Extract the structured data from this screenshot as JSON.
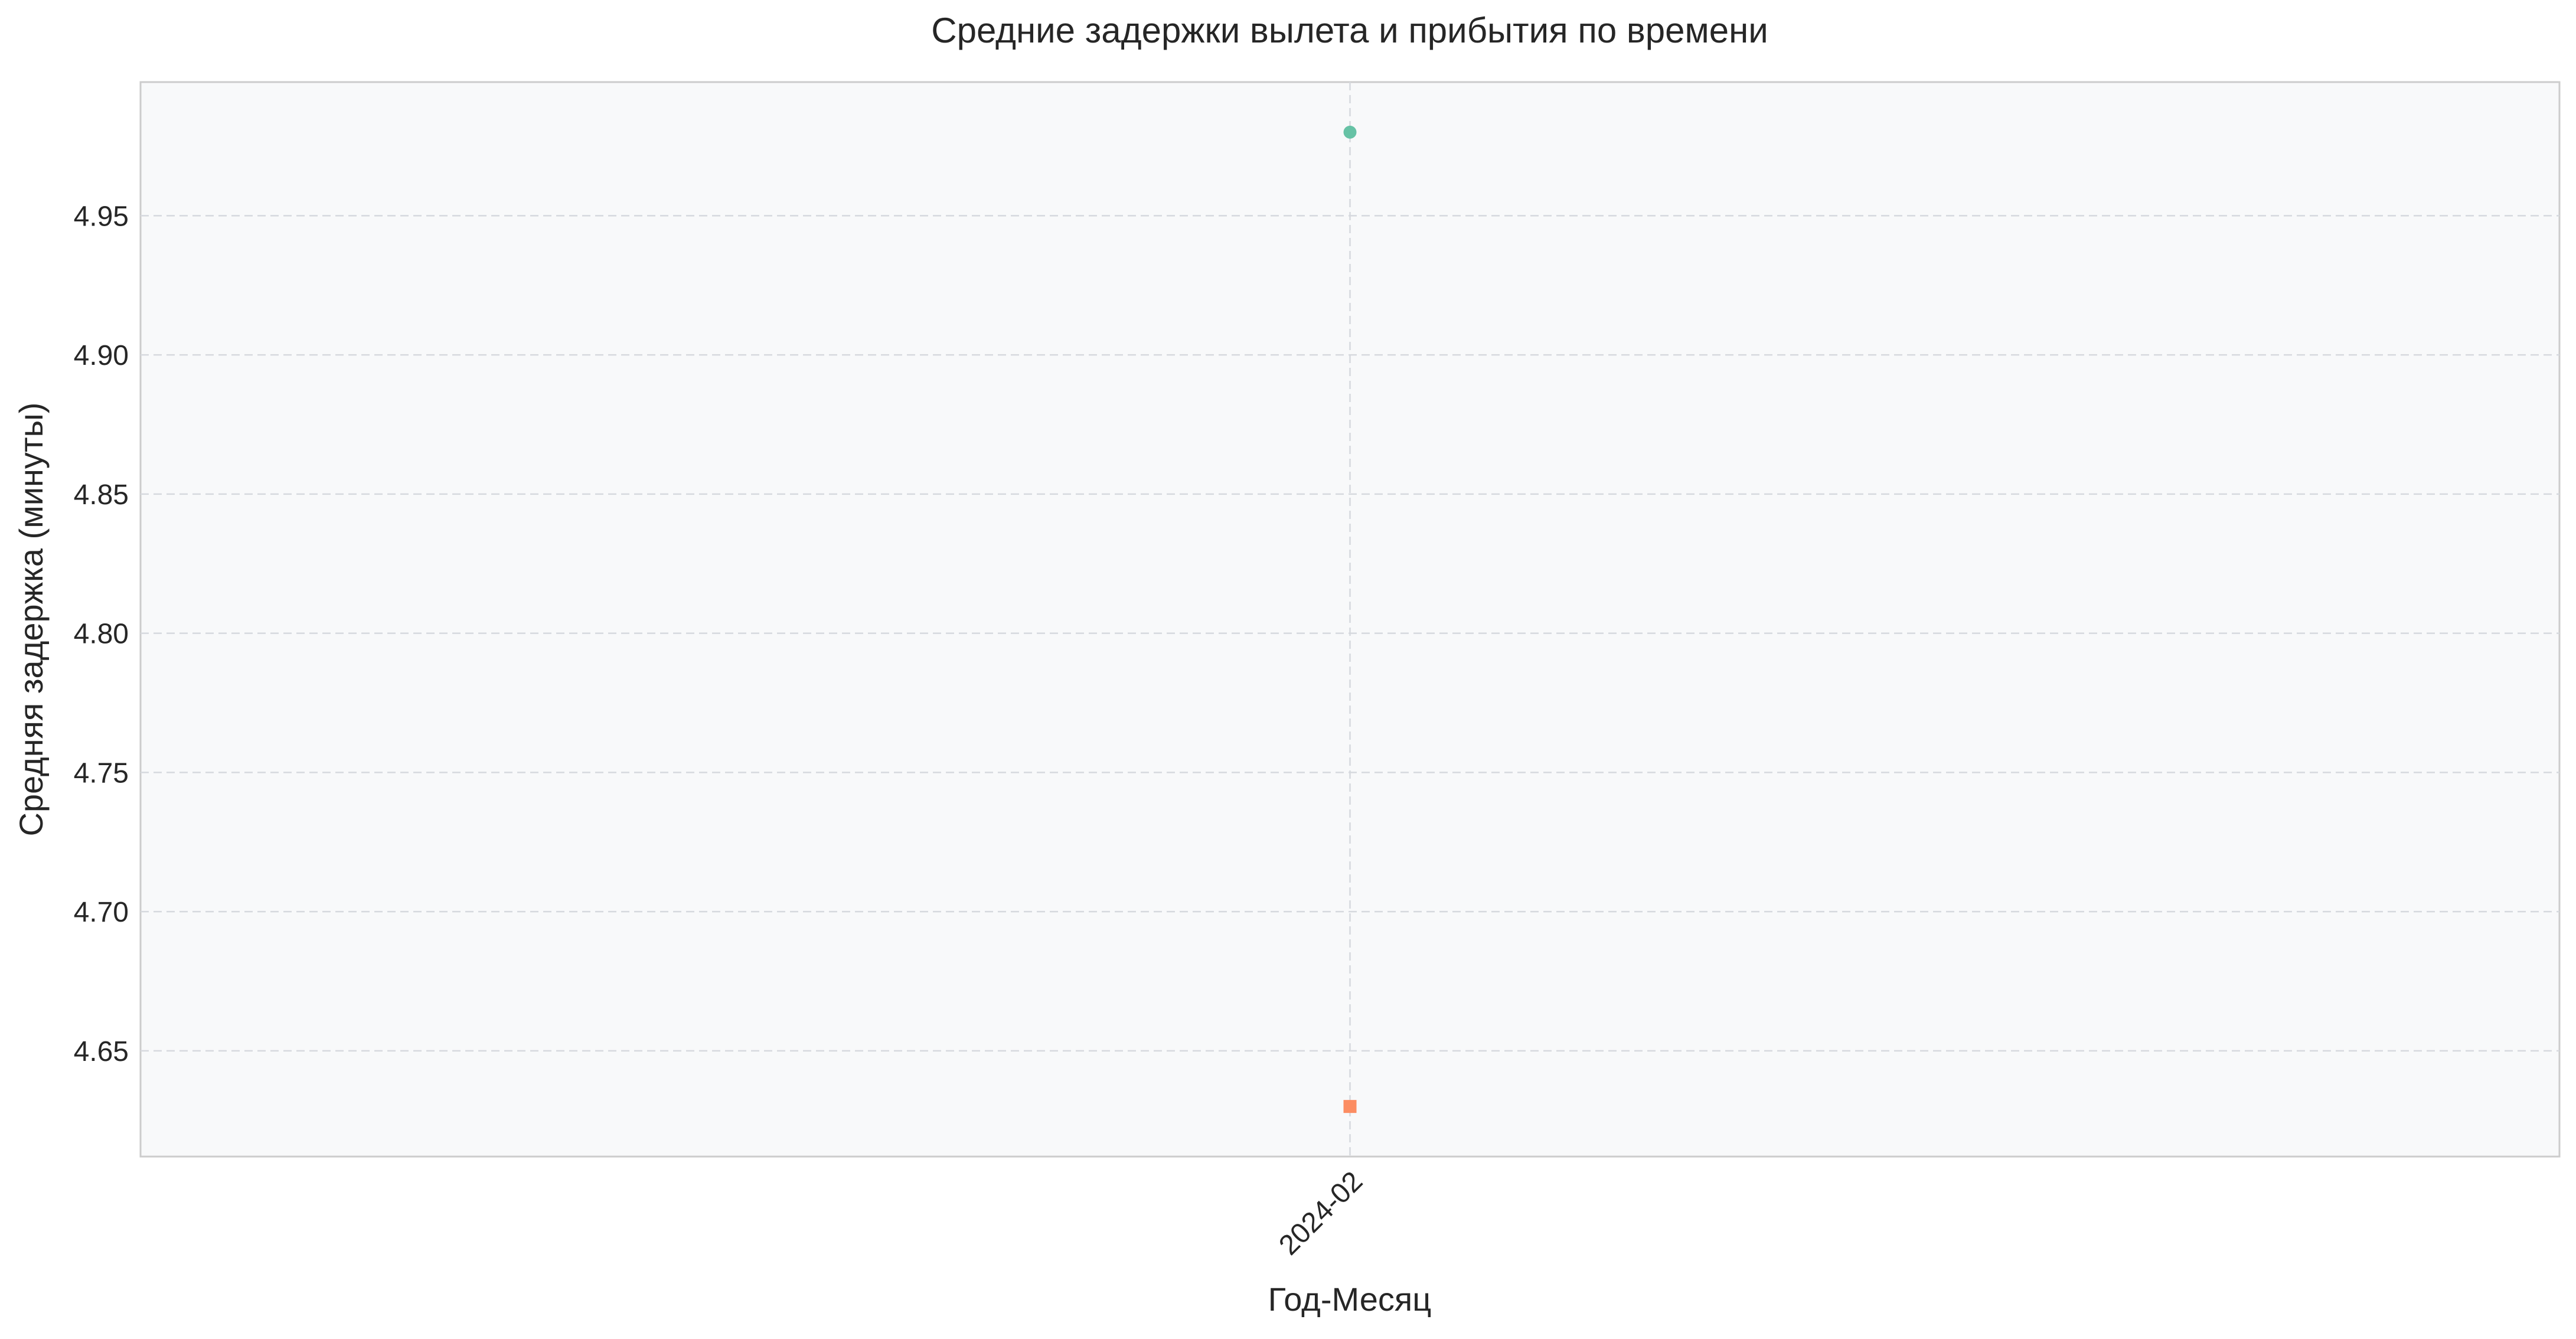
{
  "chart_data": {
    "type": "scatter",
    "title": "Средние задержки вылета и прибытия по времени",
    "xlabel": "Год-Месяц",
    "ylabel": "Средняя задержка (минуты)",
    "categories": [
      "2024-02"
    ],
    "ylim": [
      4.612,
      4.998
    ],
    "yticks": [
      4.65,
      4.7,
      4.75,
      4.8,
      4.85,
      4.9,
      4.95
    ],
    "grid": true,
    "legend": "none",
    "series": [
      {
        "values": [
          4.98
        ],
        "marker": "circle",
        "color": "#66c2a5"
      },
      {
        "values": [
          4.63
        ],
        "marker": "square",
        "color": "#fc8d62"
      }
    ],
    "colors": {
      "plot_background": "#f8f9fa",
      "grid": "#d6d9de",
      "frame": "#cccccc",
      "text": "#262626"
    }
  }
}
